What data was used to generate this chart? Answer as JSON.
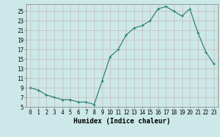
{
  "x": [
    0,
    1,
    2,
    3,
    4,
    5,
    6,
    7,
    8,
    9,
    10,
    11,
    12,
    13,
    14,
    15,
    16,
    17,
    18,
    19,
    20,
    21,
    22,
    23
  ],
  "y": [
    9,
    8.5,
    7.5,
    7,
    6.5,
    6.5,
    6,
    6,
    5.5,
    10.5,
    15.5,
    17,
    20,
    21.5,
    22,
    23,
    25.5,
    26,
    25,
    24,
    25.5,
    20.5,
    16.5,
    14
  ],
  "xlabel": "Humidex (Indice chaleur)",
  "line_color": "#2e7d6e",
  "marker": "+",
  "bg_color": "#cce8e8",
  "ylim": [
    5,
    26
  ],
  "xlim": [
    -0.5,
    23.5
  ],
  "yticks": [
    5,
    7,
    9,
    11,
    13,
    15,
    17,
    19,
    21,
    23,
    25
  ],
  "xticks": [
    0,
    1,
    2,
    3,
    4,
    5,
    6,
    7,
    8,
    9,
    10,
    11,
    12,
    13,
    14,
    15,
    16,
    17,
    18,
    19,
    20,
    21,
    22,
    23
  ],
  "tick_fontsize": 5.5,
  "xlabel_fontsize": 7
}
